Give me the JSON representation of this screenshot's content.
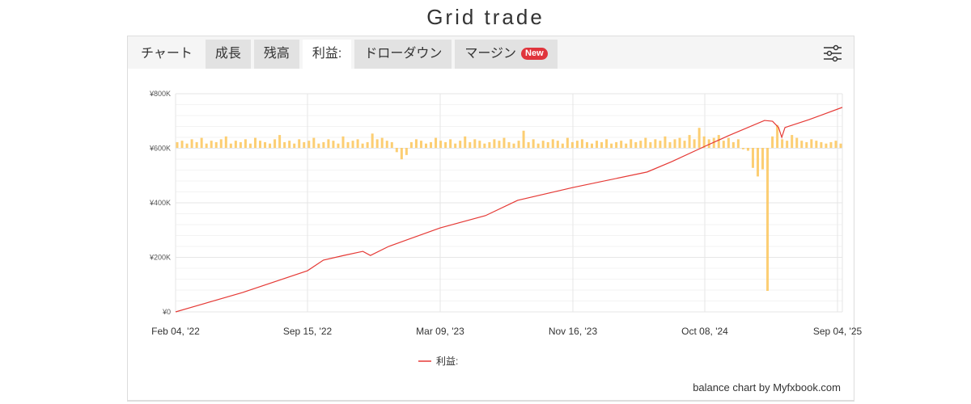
{
  "page_title": "Grid trade",
  "tabs": [
    {
      "label": "チャート",
      "state": "plain"
    },
    {
      "label": "成長",
      "state": "normal"
    },
    {
      "label": "残高",
      "state": "normal"
    },
    {
      "label": "利益:",
      "state": "active"
    },
    {
      "label": "ドローダウン",
      "state": "normal"
    },
    {
      "label": "マージン",
      "state": "normal",
      "badge": "New"
    }
  ],
  "settings_icon": "sliders-icon",
  "credit": "balance chart by Myfxbook.com",
  "chart_data": {
    "type": "line",
    "title": "",
    "xlabel": "",
    "ylabel": "",
    "ylim": [
      0,
      800000
    ],
    "y_ticks": [
      {
        "v": 0,
        "label": "¥0"
      },
      {
        "v": 200000,
        "label": "¥200K"
      },
      {
        "v": 400000,
        "label": "¥400K"
      },
      {
        "v": 600000,
        "label": "¥600K"
      },
      {
        "v": 800000,
        "label": "¥800K"
      }
    ],
    "x_ticks": [
      "2022-02-04",
      "2022-09-15",
      "2023-03-09",
      "2023-11-16",
      "2024-10-08",
      "2025-09-04"
    ],
    "x_tick_labels": [
      "Feb 04, '22",
      "Sep 15, '22",
      "Mar 09, '23",
      "Nov 16, '23",
      "Oct 08, '24",
      "Sep 04, '25"
    ],
    "grid": true,
    "legend": {
      "placement": "bottom",
      "entries": [
        {
          "name": "利益:",
          "color": "#e53935"
        }
      ]
    },
    "series": [
      {
        "name": "利益:",
        "color": "#e53935",
        "points": [
          [
            "2022-02-04",
            0
          ],
          [
            "2022-05-28",
            71000
          ],
          [
            "2022-09-15",
            151000
          ],
          [
            "2022-10-06",
            190000
          ],
          [
            "2022-11-02",
            207000
          ],
          [
            "2022-11-27",
            222000
          ],
          [
            "2022-12-07",
            207000
          ],
          [
            "2022-12-31",
            240000
          ],
          [
            "2023-03-09",
            308000
          ],
          [
            "2023-06-03",
            353000
          ],
          [
            "2023-08-03",
            409000
          ],
          [
            "2023-11-16",
            456000
          ],
          [
            "2024-05-18",
            513000
          ],
          [
            "2024-07-18",
            551000
          ],
          [
            "2024-10-08",
            607000
          ],
          [
            "2024-12-06",
            646000
          ],
          [
            "2025-03-06",
            702000
          ],
          [
            "2025-03-26",
            699000
          ],
          [
            "2025-04-10",
            676000
          ],
          [
            "2025-04-18",
            640000
          ],
          [
            "2025-04-26",
            676000
          ],
          [
            "2025-06-25",
            705000
          ],
          [
            "2025-09-16",
            750000
          ]
        ]
      }
    ],
    "bars": {
      "color": "#fbc65a",
      "axis": "secondary-hidden",
      "values": [
        4,
        5,
        3,
        6,
        4,
        7,
        3,
        5,
        4,
        6,
        8,
        3,
        5,
        4,
        6,
        3,
        7,
        5,
        4,
        3,
        6,
        9,
        4,
        5,
        3,
        6,
        4,
        5,
        7,
        3,
        4,
        6,
        5,
        3,
        8,
        4,
        5,
        6,
        3,
        4,
        10,
        6,
        7,
        5,
        4,
        -3,
        -8,
        -5,
        4,
        6,
        5,
        3,
        4,
        7,
        5,
        4,
        6,
        3,
        5,
        8,
        4,
        6,
        5,
        3,
        4,
        6,
        5,
        7,
        4,
        3,
        5,
        12,
        4,
        6,
        3,
        5,
        4,
        6,
        5,
        3,
        7,
        4,
        5,
        6,
        4,
        3,
        5,
        4,
        6,
        3,
        4,
        5,
        3,
        6,
        4,
        5,
        7,
        4,
        6,
        5,
        8,
        4,
        6,
        7,
        5,
        9,
        6,
        14,
        8,
        6,
        7,
        9,
        5,
        7,
        4,
        6,
        -1,
        -2,
        -14,
        -20,
        -15,
        -100,
        8,
        16,
        6,
        5,
        9,
        7,
        5,
        4,
        6,
        5,
        4,
        3,
        4,
        5,
        3
      ]
    }
  }
}
